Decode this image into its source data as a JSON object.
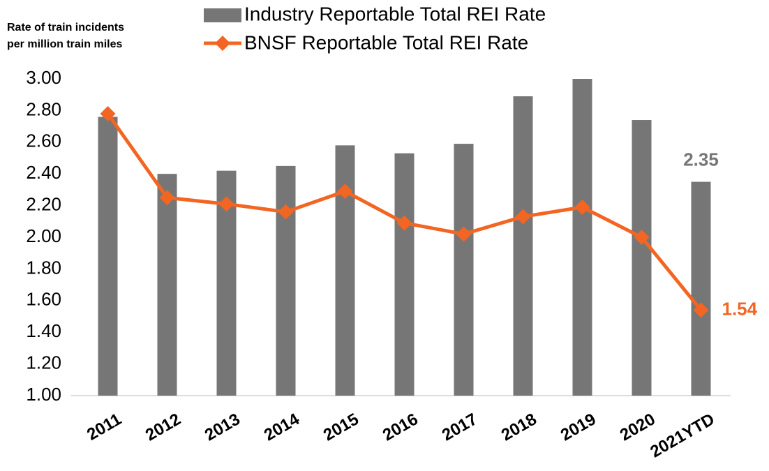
{
  "chart_data": {
    "type": "bar_line",
    "ylabel": [
      "Rate of train incidents",
      "per million train miles"
    ],
    "categories": [
      "2011",
      "2012",
      "2013",
      "2014",
      "2015",
      "2016",
      "2017",
      "2018",
      "2019",
      "2020",
      "2021YTD"
    ],
    "series": [
      {
        "name": "Industry Reportable Total REI Rate",
        "type": "bar",
        "color": "#767676",
        "values": [
          2.76,
          2.4,
          2.42,
          2.45,
          2.58,
          2.53,
          2.59,
          2.89,
          3.0,
          2.74,
          2.35
        ],
        "value_labels": [
          null,
          null,
          null,
          null,
          null,
          null,
          null,
          null,
          null,
          null,
          "2.35"
        ]
      },
      {
        "name": "BNSF Reportable Total REI Rate",
        "type": "line",
        "color": "#f26522",
        "values": [
          2.78,
          2.25,
          2.21,
          2.16,
          2.29,
          2.09,
          2.02,
          2.13,
          2.19,
          2.0,
          1.54
        ],
        "value_labels": [
          null,
          null,
          null,
          null,
          null,
          null,
          null,
          null,
          null,
          null,
          "1.54"
        ]
      }
    ],
    "ylim": [
      1,
      3
    ],
    "yticks": [
      {
        "value": 1,
        "label": "1.00"
      },
      {
        "value": 1.2,
        "label": "1.20"
      },
      {
        "value": 1.4,
        "label": "1.40"
      },
      {
        "value": 1.6,
        "label": "1.60"
      },
      {
        "value": 1.8,
        "label": "1.80"
      },
      {
        "value": 2,
        "label": "2.00"
      },
      {
        "value": 2.2,
        "label": "2.20"
      },
      {
        "value": 2.4,
        "label": "2.40"
      },
      {
        "value": 2.6,
        "label": "2.60"
      },
      {
        "value": 2.8,
        "label": "2.80"
      },
      {
        "value": 3,
        "label": "3.00"
      }
    ],
    "grid": false
  }
}
